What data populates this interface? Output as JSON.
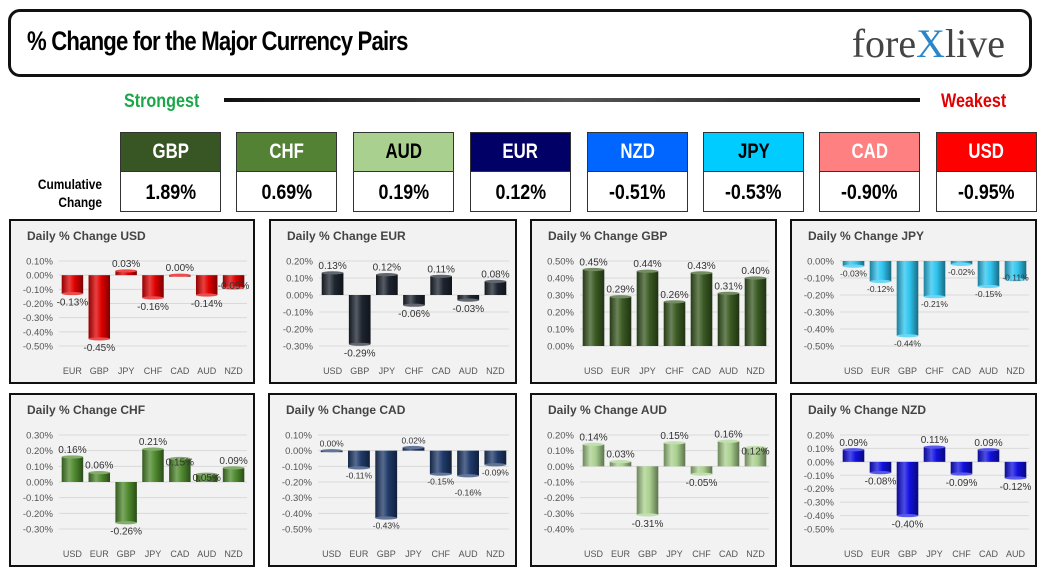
{
  "header": {
    "title": "% Change for the Major Currency Pairs",
    "logo_text": "forexlive"
  },
  "scale": {
    "strongest": "Strongest",
    "weakest": "Weakest"
  },
  "cumulative": {
    "label_line1": "Cumulative",
    "label_line2": "Change",
    "items": [
      {
        "ccy": "GBP",
        "value": "1.89%",
        "bg": "#375623",
        "fg": "#ffffff"
      },
      {
        "ccy": "CHF",
        "value": "0.69%",
        "bg": "#548235",
        "fg": "#ffffff"
      },
      {
        "ccy": "AUD",
        "value": "0.19%",
        "bg": "#a9d08e",
        "fg": "#000000"
      },
      {
        "ccy": "EUR",
        "value": "0.12%",
        "bg": "#000066",
        "fg": "#ffffff"
      },
      {
        "ccy": "NZD",
        "value": "-0.51%",
        "bg": "#0066ff",
        "fg": "#ffffff"
      },
      {
        "ccy": "JPY",
        "value": "-0.53%",
        "bg": "#00ccff",
        "fg": "#000000"
      },
      {
        "ccy": "CAD",
        "value": "-0.90%",
        "bg": "#ff8080",
        "fg": "#ffffff"
      },
      {
        "ccy": "USD",
        "value": "-0.95%",
        "bg": "#ff0000",
        "fg": "#ffffff"
      }
    ]
  },
  "chart_data": [
    {
      "type": "bar",
      "title": "Daily % Change USD",
      "color": "#e00000",
      "categories": [
        "EUR",
        "GBP",
        "JPY",
        "CHF",
        "CAD",
        "AUD",
        "NZD"
      ],
      "values": [
        -0.13,
        -0.45,
        0.03,
        -0.16,
        0.0,
        -0.14,
        -0.09
      ],
      "labels": [
        "-0.13%",
        "-0.45%",
        "0.03%",
        "-0.16%",
        "0.00%",
        "-0.14%",
        "-0.09%"
      ],
      "ylim": [
        -0.5,
        0.1
      ],
      "yticks": [
        "0.10%",
        "0.00%",
        "-0.10%",
        "-0.20%",
        "-0.30%",
        "-0.40%",
        "-0.50%"
      ],
      "grid": true
    },
    {
      "type": "bar",
      "title": "Daily % Change EUR",
      "color": "#1e2530",
      "categories": [
        "USD",
        "GBP",
        "JPY",
        "CHF",
        "CAD",
        "AUD",
        "NZD"
      ],
      "values": [
        0.13,
        -0.29,
        0.12,
        -0.06,
        0.11,
        -0.03,
        0.08
      ],
      "labels": [
        "0.13%",
        "-0.29%",
        "0.12%",
        "-0.06%",
        "0.11%",
        "-0.03%",
        "0.08%"
      ],
      "ylim": [
        -0.3,
        0.2
      ],
      "yticks": [
        "0.20%",
        "0.10%",
        "0.00%",
        "-0.10%",
        "-0.20%",
        "-0.30%"
      ],
      "grid": true
    },
    {
      "type": "bar",
      "title": "Daily % Change GBP",
      "color": "#3a5a22",
      "categories": [
        "USD",
        "EUR",
        "JPY",
        "CHF",
        "CAD",
        "AUD",
        "NZD"
      ],
      "values": [
        0.45,
        0.29,
        0.44,
        0.26,
        0.43,
        0.31,
        0.4
      ],
      "labels": [
        "0.45%",
        "0.29%",
        "0.44%",
        "0.26%",
        "0.43%",
        "0.31%",
        "0.40%"
      ],
      "ylim": [
        0,
        0.5
      ],
      "yticks": [
        "0.50%",
        "0.40%",
        "0.30%",
        "0.20%",
        "0.10%",
        "0.00%"
      ],
      "grid": true
    },
    {
      "type": "bar",
      "title": "Daily % Change JPY",
      "color": "#2ec4ef",
      "categories": [
        "USD",
        "EUR",
        "GBP",
        "CHF",
        "CAD",
        "AUD",
        "NZD"
      ],
      "values": [
        -0.03,
        -0.12,
        -0.44,
        -0.21,
        -0.02,
        -0.15,
        -0.11
      ],
      "labels": [
        "-0.03%",
        "-0.12%",
        "-0.44%",
        "-0.21%",
        "-0.02%",
        "-0.15%",
        "-0.11%"
      ],
      "ylim": [
        -0.5,
        0
      ],
      "yticks": [
        "0.00%",
        "-0.10%",
        "-0.20%",
        "-0.30%",
        "-0.40%",
        "-0.50%"
      ],
      "grid": true
    },
    {
      "type": "bar",
      "title": "Daily % Change CHF",
      "color": "#4f8a2e",
      "categories": [
        "USD",
        "EUR",
        "GBP",
        "JPY",
        "CAD",
        "AUD",
        "NZD"
      ],
      "values": [
        0.16,
        0.06,
        -0.26,
        0.21,
        0.15,
        0.05,
        0.09
      ],
      "labels": [
        "0.16%",
        "0.06%",
        "-0.26%",
        "0.21%",
        "0.15%",
        "0.05%",
        "0.09%"
      ],
      "ylim": [
        -0.3,
        0.3
      ],
      "yticks": [
        "0.30%",
        "0.20%",
        "0.10%",
        "0.00%",
        "-0.10%",
        "-0.20%",
        "-0.30%"
      ],
      "grid": true
    },
    {
      "type": "bar",
      "title": "Daily % Change CAD",
      "color": "#1f3a6a",
      "categories": [
        "USD",
        "EUR",
        "GBP",
        "JPY",
        "CHF",
        "AUD",
        "NZD"
      ],
      "values": [
        0.0,
        -0.11,
        -0.43,
        0.02,
        -0.15,
        -0.16,
        -0.09
      ],
      "labels": [
        "0.00%",
        "-0.11%",
        "-0.43%",
        "0.02%",
        "-0.15%",
        "-0.16%",
        "-0.09%"
      ],
      "ylim": [
        -0.5,
        0.1
      ],
      "yticks": [
        "0.10%",
        "0.00%",
        "-0.10%",
        "-0.20%",
        "-0.30%",
        "-0.40%",
        "-0.50%"
      ],
      "grid": true
    },
    {
      "type": "bar",
      "title": "Daily % Change AUD",
      "color": "#a9d08e",
      "categories": [
        "USD",
        "EUR",
        "GBP",
        "JPY",
        "CHF",
        "CAD",
        "NZD"
      ],
      "values": [
        0.14,
        0.03,
        -0.31,
        0.15,
        -0.05,
        0.16,
        0.12
      ],
      "labels": [
        "0.14%",
        "0.03%",
        "-0.31%",
        "0.15%",
        "-0.05%",
        "0.16%",
        "0.12%"
      ],
      "ylim": [
        -0.4,
        0.2
      ],
      "yticks": [
        "0.20%",
        "0.10%",
        "0.00%",
        "-0.10%",
        "-0.20%",
        "-0.30%",
        "-0.40%"
      ],
      "grid": true
    },
    {
      "type": "bar",
      "title": "Daily % Change NZD",
      "color": "#1010e0",
      "categories": [
        "USD",
        "EUR",
        "GBP",
        "JPY",
        "CHF",
        "CAD",
        "AUD"
      ],
      "values": [
        0.09,
        -0.08,
        -0.4,
        0.11,
        -0.09,
        0.09,
        -0.12
      ],
      "labels": [
        "0.09%",
        "-0.08%",
        "-0.40%",
        "0.11%",
        "-0.09%",
        "0.09%",
        "-0.12%"
      ],
      "ylim": [
        -0.5,
        0.2
      ],
      "yticks": [
        "0.20%",
        "0.10%",
        "0.00%",
        "-0.10%",
        "-0.20%",
        "-0.30%",
        "-0.40%",
        "-0.50%"
      ],
      "grid": true
    }
  ]
}
